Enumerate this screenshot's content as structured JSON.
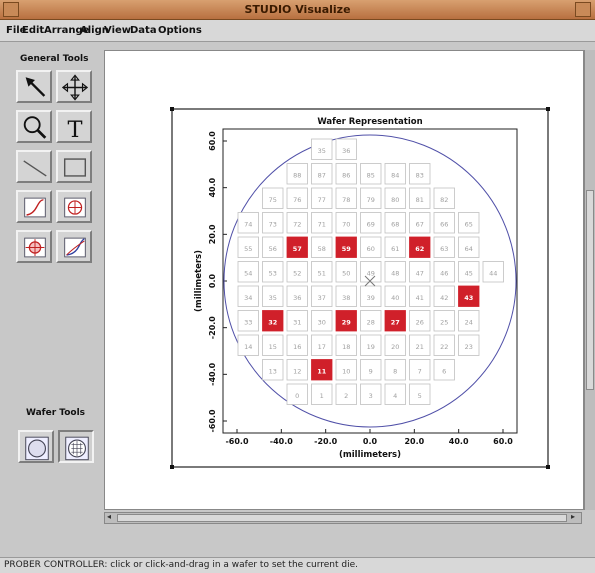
{
  "window": {
    "title": "STUDIO Visualize"
  },
  "menu": [
    {
      "name": "menu-file",
      "label": "File"
    },
    {
      "name": "menu-edit",
      "label": "Edit"
    },
    {
      "name": "menu-arrange",
      "label": "Arrange"
    },
    {
      "name": "menu-align",
      "label": "Align"
    },
    {
      "name": "menu-view",
      "label": "View"
    },
    {
      "name": "menu-data",
      "label": "Data"
    },
    {
      "name": "menu-options",
      "label": "Options"
    }
  ],
  "tools": {
    "general_label": "General Tools",
    "general": [
      "arrow-icon",
      "move-icon",
      "zoom-icon",
      "text-icon",
      "line-icon",
      "rectangle-icon",
      "curve-tool-icon",
      "wafer-tool-icon",
      "target-icon",
      "fit-curve-icon"
    ],
    "wafer_label": "Wafer Tools",
    "wafer": [
      "wafer-select-icon",
      "wafer-map-icon"
    ]
  },
  "plot": {
    "title": "Wafer Representation",
    "xlabel": "(millimeters)",
    "ylabel": "(millimeters)",
    "x_ticks": [
      "-60.0",
      "-40.0",
      "-20.0",
      "0.0",
      "20.0",
      "40.0",
      "60.0"
    ],
    "y_ticks": [
      "60.0",
      "40.0",
      "20.0",
      "0.0",
      "-20.0",
      "-40.0",
      "-60.0"
    ],
    "colors": {
      "die_fill": "#ffffff",
      "die_stroke": "#c0c0c0",
      "die_text": "#a0a0a0",
      "highlight": "#d0202a",
      "wafer": "#5050a8"
    },
    "rows": [
      {
        "start_col": 4,
        "dies": [
          "35",
          "36"
        ]
      },
      {
        "start_col": 3,
        "dies": [
          "88",
          "87",
          "86",
          "85",
          "84",
          "83"
        ]
      },
      {
        "start_col": 2,
        "dies": [
          "75",
          "76",
          "77",
          "78",
          "79",
          "80",
          "81",
          "82"
        ]
      },
      {
        "start_col": 1,
        "dies": [
          "74",
          "73",
          "72",
          "71",
          "70",
          "69",
          "68",
          "67",
          "66",
          "65"
        ]
      },
      {
        "start_col": 1,
        "dies": [
          "55",
          "56",
          "57",
          "58",
          "59",
          "60",
          "61",
          "62",
          "63",
          "64"
        ]
      },
      {
        "start_col": 1,
        "dies": [
          "54",
          "53",
          "52",
          "51",
          "50",
          "49",
          "48",
          "47",
          "46",
          "45",
          "44"
        ]
      },
      {
        "start_col": 1,
        "dies": [
          "34",
          "35",
          "36",
          "37",
          "38",
          "39",
          "40",
          "41",
          "42",
          "43"
        ]
      },
      {
        "start_col": 1,
        "dies": [
          "33",
          "32",
          "31",
          "30",
          "29",
          "28",
          "27",
          "26",
          "25",
          "24"
        ]
      },
      {
        "start_col": 1,
        "dies": [
          "14",
          "15",
          "16",
          "17",
          "18",
          "19",
          "20",
          "21",
          "22",
          "23"
        ]
      },
      {
        "start_col": 2,
        "dies": [
          "13",
          "12",
          "11",
          "10",
          "9",
          "8",
          "7",
          "6"
        ]
      },
      {
        "start_col": 3,
        "dies": [
          "0",
          "1",
          "2",
          "3",
          "4",
          "5"
        ]
      }
    ],
    "highlighted": [
      "57",
      "59",
      "62",
      "43",
      "32",
      "29",
      "27",
      "11"
    ]
  },
  "status": {
    "text": "PROBER CONTROLLER: click or click-and-drag in a wafer to set the current die."
  }
}
